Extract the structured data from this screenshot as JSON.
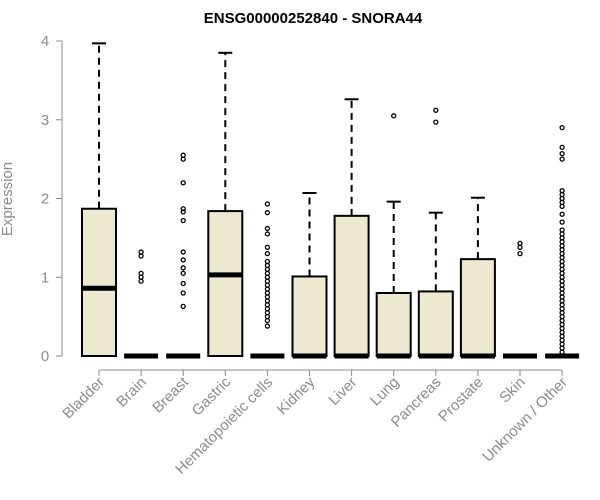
{
  "chart_data": {
    "type": "boxplot",
    "title": "ENSG00000252840 - SNORA44",
    "ylabel": "Expression",
    "xlabel": "",
    "ylim": [
      0,
      4
    ],
    "yticks": [
      0,
      1,
      2,
      3,
      4
    ],
    "box_fill": "#ede8d0",
    "box_stroke": "#000000",
    "axis_color": "#8c8c8c",
    "categories": [
      "Bladder",
      "Brain",
      "Breast",
      "Gastric",
      "Hematopoietic cells",
      "Kidney",
      "Liver",
      "Lung",
      "Pancreas",
      "Prostate",
      "Skin",
      "Unknown / Other"
    ],
    "boxes": [
      {
        "category": "Bladder",
        "min": 0,
        "q1": 0,
        "median": 0.86,
        "q3": 1.87,
        "max": 3.97,
        "outliers": []
      },
      {
        "category": "Brain",
        "min": 0,
        "q1": 0,
        "median": 0,
        "q3": 0,
        "max": 0,
        "outliers": [
          0.95,
          1.0,
          1.05,
          1.27,
          1.32
        ]
      },
      {
        "category": "Breast",
        "min": 0,
        "q1": 0,
        "median": 0,
        "q3": 0,
        "max": 0,
        "outliers": [
          0.63,
          0.8,
          0.92,
          1.05,
          1.12,
          1.22,
          1.32,
          1.72,
          1.83,
          1.87,
          2.2,
          2.5,
          2.55
        ]
      },
      {
        "category": "Gastric",
        "min": 0,
        "q1": 0,
        "median": 1.03,
        "q3": 1.84,
        "max": 3.85,
        "outliers": []
      },
      {
        "category": "Hematopoietic cells",
        "min": 0,
        "q1": 0,
        "median": 0,
        "q3": 0,
        "max": 0,
        "outliers": [
          0.38,
          0.45,
          0.5,
          0.55,
          0.6,
          0.65,
          0.7,
          0.75,
          0.8,
          0.85,
          0.9,
          0.95,
          1.0,
          1.05,
          1.1,
          1.15,
          1.2,
          1.3,
          1.38,
          1.55,
          1.62,
          1.82,
          1.93
        ]
      },
      {
        "category": "Kidney",
        "min": 0,
        "q1": 0,
        "median": 0,
        "q3": 1.01,
        "max": 2.07,
        "outliers": []
      },
      {
        "category": "Liver",
        "min": 0,
        "q1": 0,
        "median": 0,
        "q3": 1.78,
        "max": 3.26,
        "outliers": []
      },
      {
        "category": "Lung",
        "min": 0,
        "q1": 0,
        "median": 0,
        "q3": 0.8,
        "max": 1.96,
        "outliers": [
          3.05
        ]
      },
      {
        "category": "Pancreas",
        "min": 0,
        "q1": 0,
        "median": 0,
        "q3": 0.82,
        "max": 1.82,
        "outliers": [
          2.97,
          3.12
        ]
      },
      {
        "category": "Prostate",
        "min": 0,
        "q1": 0,
        "median": 0,
        "q3": 1.23,
        "max": 2.01,
        "outliers": []
      },
      {
        "category": "Skin",
        "min": 0,
        "q1": 0,
        "median": 0,
        "q3": 0,
        "max": 0,
        "outliers": [
          1.3,
          1.38,
          1.43
        ]
      },
      {
        "category": "Unknown / Other",
        "min": 0,
        "q1": 0,
        "median": 0,
        "q3": 0,
        "max": 0,
        "outliers": [
          0.05,
          0.1,
          0.15,
          0.2,
          0.25,
          0.3,
          0.35,
          0.4,
          0.45,
          0.5,
          0.55,
          0.6,
          0.65,
          0.7,
          0.75,
          0.8,
          0.85,
          0.9,
          0.95,
          1.0,
          1.05,
          1.1,
          1.15,
          1.2,
          1.25,
          1.3,
          1.35,
          1.4,
          1.45,
          1.5,
          1.55,
          1.6,
          1.7,
          1.8,
          1.9,
          1.95,
          2.0,
          2.05,
          2.1,
          2.5,
          2.57,
          2.65,
          2.9
        ]
      }
    ]
  }
}
